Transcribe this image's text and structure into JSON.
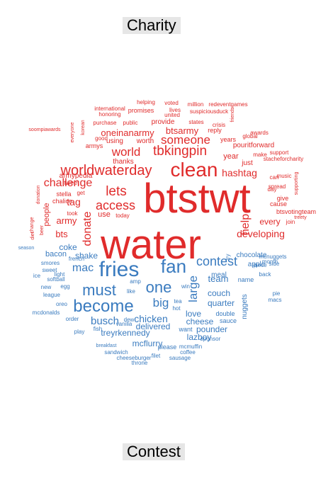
{
  "labels": {
    "top": "Charity",
    "bottom": "Contest"
  },
  "colors": {
    "charity": "#e02b2b",
    "contest": "#3a7bbf"
  },
  "words": [
    {
      "t": "btstwt",
      "g": "charity",
      "s": 58
    },
    {
      "t": "water",
      "g": "charity",
      "s": 58
    },
    {
      "t": "clean",
      "g": "charity",
      "s": 28
    },
    {
      "t": "worldwaterday",
      "g": "charity",
      "s": 20
    },
    {
      "t": "tbkingpin",
      "g": "charity",
      "s": 19
    },
    {
      "t": "lets",
      "g": "charity",
      "s": 19
    },
    {
      "t": "access",
      "g": "charity",
      "s": 18
    },
    {
      "t": "world",
      "g": "charity",
      "s": 17
    },
    {
      "t": "someone",
      "g": "charity",
      "s": 17
    },
    {
      "t": "challenge",
      "g": "charity",
      "s": 16
    },
    {
      "t": "help",
      "g": "charity",
      "s": 16
    },
    {
      "t": "donate",
      "g": "charity",
      "s": 16
    },
    {
      "t": "hashtag",
      "g": "charity",
      "s": 14
    },
    {
      "t": "developing",
      "g": "charity",
      "s": 14
    },
    {
      "t": "tag",
      "g": "charity",
      "s": 14
    },
    {
      "t": "oneinanarmy",
      "g": "charity",
      "s": 13
    },
    {
      "t": "btsarmy",
      "g": "charity",
      "s": 13
    },
    {
      "t": "army",
      "g": "charity",
      "s": 13
    },
    {
      "t": "bts",
      "g": "charity",
      "s": 13
    },
    {
      "t": "every",
      "g": "charity",
      "s": 12
    },
    {
      "t": "use",
      "g": "charity",
      "s": 11
    },
    {
      "t": "year",
      "g": "charity",
      "s": 11
    },
    {
      "t": "people",
      "g": "charity",
      "s": 11
    },
    {
      "t": "pouritforward",
      "g": "charity",
      "s": 10
    },
    {
      "t": "armypedia",
      "g": "charity",
      "s": 10
    },
    {
      "t": "using",
      "g": "charity",
      "s": 10
    },
    {
      "t": "worth",
      "g": "charity",
      "s": 10
    },
    {
      "t": "provide",
      "g": "charity",
      "s": 10
    },
    {
      "t": "thanks",
      "g": "charity",
      "s": 10
    },
    {
      "t": "just",
      "g": "charity",
      "s": 10
    },
    {
      "t": "cause",
      "g": "charity",
      "s": 9
    },
    {
      "t": "btsvotingteam",
      "g": "charity",
      "s": 9
    },
    {
      "t": "armys",
      "g": "charity",
      "s": 9
    },
    {
      "t": "promises",
      "g": "charity",
      "s": 9
    },
    {
      "t": "tweet",
      "g": "charity",
      "s": 9
    },
    {
      "t": "stella",
      "g": "charity",
      "s": 9
    },
    {
      "t": "chalice",
      "g": "charity",
      "s": 9
    },
    {
      "t": "give",
      "g": "charity",
      "s": 9
    },
    {
      "t": "years",
      "g": "charity",
      "s": 9
    },
    {
      "t": "reply",
      "g": "charity",
      "s": 9
    },
    {
      "t": "day",
      "g": "charity",
      "s": 8
    },
    {
      "t": "get",
      "g": "charity",
      "s": 8
    },
    {
      "t": "took",
      "g": "charity",
      "s": 8
    },
    {
      "t": "today",
      "g": "charity",
      "s": 8
    },
    {
      "t": "good",
      "g": "charity",
      "s": 8
    },
    {
      "t": "public",
      "g": "charity",
      "s": 8
    },
    {
      "t": "states",
      "g": "charity",
      "s": 8
    },
    {
      "t": "united",
      "g": "charity",
      "s": 8
    },
    {
      "t": "lives",
      "g": "charity",
      "s": 8
    },
    {
      "t": "voted",
      "g": "charity",
      "s": 8
    },
    {
      "t": "helping",
      "g": "charity",
      "s": 8
    },
    {
      "t": "international",
      "g": "charity",
      "s": 8
    },
    {
      "t": "honoring",
      "g": "charity",
      "s": 8
    },
    {
      "t": "purchase",
      "g": "charity",
      "s": 8
    },
    {
      "t": "million",
      "g": "charity",
      "s": 8
    },
    {
      "t": "redeventgames",
      "g": "charity",
      "s": 8
    },
    {
      "t": "suspiciousduck",
      "g": "charity",
      "s": 8
    },
    {
      "t": "crisis",
      "g": "charity",
      "s": 8
    },
    {
      "t": "awards",
      "g": "charity",
      "s": 8
    },
    {
      "t": "global",
      "g": "charity",
      "s": 8
    },
    {
      "t": "make",
      "g": "charity",
      "s": 8
    },
    {
      "t": "support",
      "g": "charity",
      "s": 8
    },
    {
      "t": "stacheforcharity",
      "g": "charity",
      "s": 8
    },
    {
      "t": "music",
      "g": "charity",
      "s": 8
    },
    {
      "t": "spread",
      "g": "charity",
      "s": 8
    },
    {
      "t": "join",
      "g": "charity",
      "s": 8
    },
    {
      "t": "treety",
      "g": "charity",
      "s": 7
    },
    {
      "t": "soompiawards",
      "g": "charity",
      "s": 7
    },
    {
      "t": "korean",
      "g": "charity",
      "s": 7
    },
    {
      "t": "everyone",
      "g": "charity",
      "s": 7
    },
    {
      "t": "friends",
      "g": "charity",
      "s": 7
    },
    {
      "t": "can",
      "g": "charity",
      "s": 8
    },
    {
      "t": "supporting",
      "g": "charity",
      "s": 7
    },
    {
      "t": "donation",
      "g": "charity",
      "s": 7
    },
    {
      "t": "change",
      "g": "charity",
      "s": 7
    },
    {
      "t": "beer",
      "g": "charity",
      "s": 7
    },
    {
      "t": "diet",
      "g": "charity",
      "s": 7
    },
    {
      "t": "fries",
      "g": "contest",
      "s": 30
    },
    {
      "t": "fan",
      "g": "contest",
      "s": 26
    },
    {
      "t": "become",
      "g": "contest",
      "s": 24
    },
    {
      "t": "must",
      "g": "contest",
      "s": 22
    },
    {
      "t": "one",
      "g": "contest",
      "s": 22
    },
    {
      "t": "contest",
      "g": "contest",
      "s": 18
    },
    {
      "t": "big",
      "g": "contest",
      "s": 17
    },
    {
      "t": "large",
      "g": "contest",
      "s": 17
    },
    {
      "t": "mac",
      "g": "contest",
      "s": 16
    },
    {
      "t": "busch",
      "g": "contest",
      "s": 15
    },
    {
      "t": "chicken",
      "g": "contest",
      "s": 14
    },
    {
      "t": "team",
      "g": "contest",
      "s": 13
    },
    {
      "t": "coke",
      "g": "contest",
      "s": 12
    },
    {
      "t": "shake",
      "g": "contest",
      "s": 12
    },
    {
      "t": "couch",
      "g": "contest",
      "s": 12
    },
    {
      "t": "treyrkennedy",
      "g": "contest",
      "s": 12
    },
    {
      "t": "delivered",
      "g": "contest",
      "s": 12
    },
    {
      "t": "love",
      "g": "contest",
      "s": 12
    },
    {
      "t": "quarter",
      "g": "contest",
      "s": 12
    },
    {
      "t": "cheese",
      "g": "contest",
      "s": 12
    },
    {
      "t": "pounder",
      "g": "contest",
      "s": 12
    },
    {
      "t": "lazboy",
      "g": "contest",
      "s": 12
    },
    {
      "t": "mcflurry",
      "g": "contest",
      "s": 12
    },
    {
      "t": "bacon",
      "g": "contest",
      "s": 11
    },
    {
      "t": "nuggets",
      "g": "contest",
      "s": 10
    },
    {
      "t": "chocolate",
      "g": "contest",
      "s": 10
    },
    {
      "t": "apple",
      "g": "contest",
      "s": 10
    },
    {
      "t": "meal",
      "g": "contest",
      "s": 10
    },
    {
      "t": "name",
      "g": "contest",
      "s": 9
    },
    {
      "t": "double",
      "g": "contest",
      "s": 9
    },
    {
      "t": "sauce",
      "g": "contest",
      "s": 9
    },
    {
      "t": "please",
      "g": "contest",
      "s": 9
    },
    {
      "t": "want",
      "g": "contest",
      "s": 9
    },
    {
      "t": "sponsor",
      "g": "contest",
      "s": 8
    },
    {
      "t": "french",
      "g": "contest",
      "s": 8
    },
    {
      "t": "smores",
      "g": "contest",
      "s": 8
    },
    {
      "t": "sweet",
      "g": "contest",
      "s": 8
    },
    {
      "t": "softball",
      "g": "contest",
      "s": 8
    },
    {
      "t": "league",
      "g": "contest",
      "s": 8
    },
    {
      "t": "egg",
      "g": "contest",
      "s": 8
    },
    {
      "t": "new",
      "g": "contest",
      "s": 8
    },
    {
      "t": "mcdonalds",
      "g": "contest",
      "s": 8
    },
    {
      "t": "oreo",
      "g": "contest",
      "s": 8
    },
    {
      "t": "order",
      "g": "contest",
      "s": 8
    },
    {
      "t": "play",
      "g": "contest",
      "s": 8
    },
    {
      "t": "vanilla",
      "g": "contest",
      "s": 8
    },
    {
      "t": "fish",
      "g": "contest",
      "s": 8
    },
    {
      "t": "dew",
      "g": "contest",
      "s": 8
    },
    {
      "t": "like",
      "g": "contest",
      "s": 8
    },
    {
      "t": "amp",
      "g": "contest",
      "s": 8
    },
    {
      "t": "win",
      "g": "contest",
      "s": 8
    },
    {
      "t": "tea",
      "g": "contest",
      "s": 8
    },
    {
      "t": "hot",
      "g": "contest",
      "s": 8
    },
    {
      "t": "fry",
      "g": "contest",
      "s": 8
    },
    {
      "t": "month",
      "g": "contest",
      "s": 8
    },
    {
      "t": "mcnuggets",
      "g": "contest",
      "s": 8
    },
    {
      "t": "back",
      "g": "contest",
      "s": 8
    },
    {
      "t": "piece",
      "g": "contest",
      "s": 8
    },
    {
      "t": "side",
      "g": "contest",
      "s": 8
    },
    {
      "t": "pie",
      "g": "contest",
      "s": 8
    },
    {
      "t": "macs",
      "g": "contest",
      "s": 8
    },
    {
      "t": "light",
      "g": "contest",
      "s": 8
    },
    {
      "t": "ice",
      "g": "contest",
      "s": 8
    },
    {
      "t": "season",
      "g": "contest",
      "s": 7
    },
    {
      "t": "breakfast",
      "g": "contest",
      "s": 7
    },
    {
      "t": "sandwich",
      "g": "contest",
      "s": 8
    },
    {
      "t": "cheeseburger",
      "g": "contest",
      "s": 8
    },
    {
      "t": "filet",
      "g": "contest",
      "s": 8
    },
    {
      "t": "sausage",
      "g": "contest",
      "s": 8
    },
    {
      "t": "throne",
      "g": "contest",
      "s": 8
    },
    {
      "t": "mcmuffin",
      "g": "contest",
      "s": 8
    },
    {
      "t": "coffee",
      "g": "contest",
      "s": 8
    },
    {
      "t": "extra",
      "g": "contest",
      "s": 8
    }
  ]
}
